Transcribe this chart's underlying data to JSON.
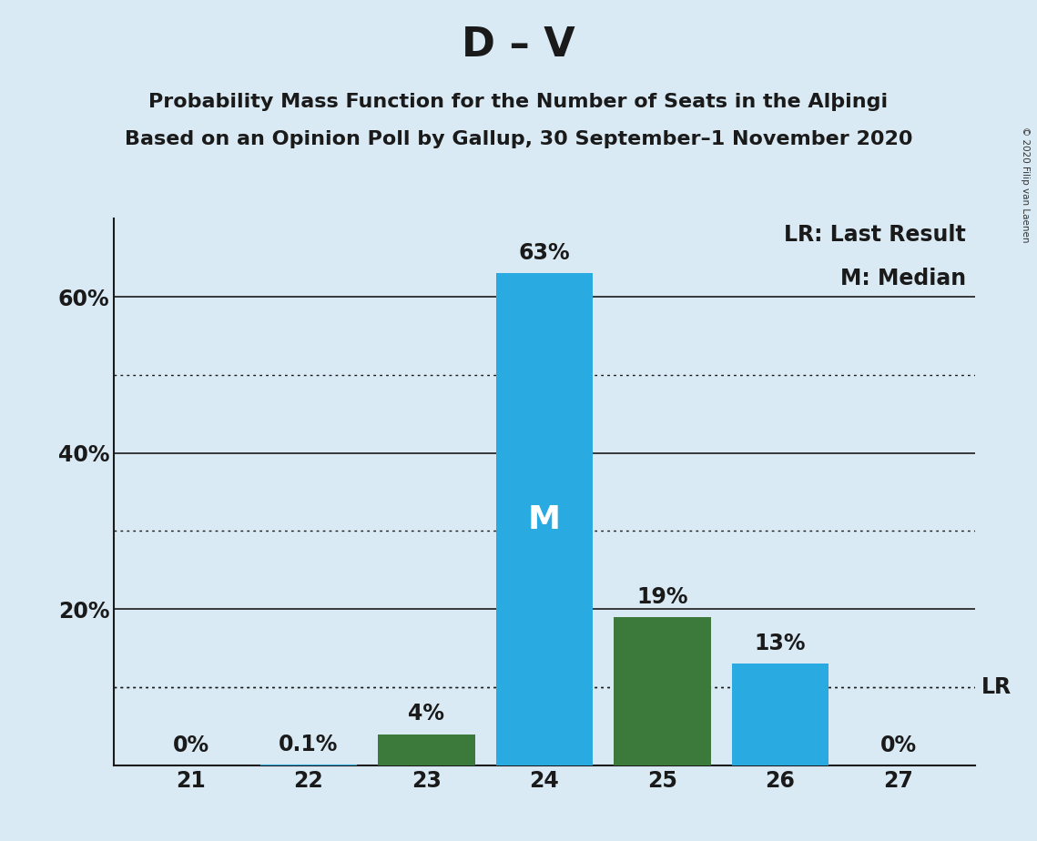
{
  "title": "D – V",
  "subtitle1": "Probability Mass Function for the Number of Seats in the Alþingi",
  "subtitle2": "Based on an Opinion Poll by Gallup, 30 September–1 November 2020",
  "seats": [
    21,
    22,
    23,
    24,
    25,
    26,
    27
  ],
  "values": [
    0.0,
    0.1,
    4.0,
    63.0,
    19.0,
    13.0,
    0.0
  ],
  "bar_colors": [
    "#29ABE2",
    "#29ABE2",
    "#3B7A3B",
    "#29ABE2",
    "#3B7A3B",
    "#29ABE2",
    "#29ABE2"
  ],
  "median_seat": 24,
  "lr_value": 10.0,
  "lr_label": "LR",
  "legend_lr": "LR: Last Result",
  "legend_m": "M: Median",
  "copyright": "© 2020 Filip van Laenen",
  "background_color": "#DAEAF5",
  "ylim_max": 70,
  "solid_gridlines": [
    20,
    40,
    60
  ],
  "dotted_gridlines": [
    10,
    30,
    50
  ],
  "title_fontsize": 32,
  "subtitle_fontsize": 16,
  "legend_fontsize": 17,
  "tick_fontsize": 17,
  "annotation_fontsize": 17,
  "median_label": "M",
  "median_label_fontsize": 26,
  "bar_width": 0.82
}
